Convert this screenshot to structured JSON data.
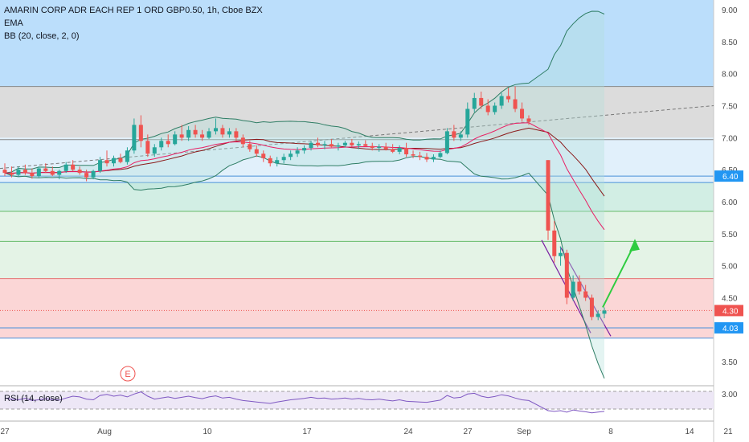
{
  "legend": {
    "title": "AMARIN CORP ADR EACH REP 1 ORD GBP0.50, 1h, Cboe BZX",
    "indicator_1": "EMA",
    "indicator_2": "BB (20, close, 2, 0)"
  },
  "rsi_label": "RSI (14, close)",
  "event_marker": "E",
  "colors": {
    "up": "#26a69a",
    "down": "#ef5350",
    "ema": "#e91e63",
    "bb": "#2e7d64",
    "mid": "#8b1a1a",
    "channel": "#7b1fa2",
    "arrow": "#2ecc40",
    "hline": "#4a90d9"
  },
  "chart_data": {
    "type": "candlestick",
    "y_axis": {
      "min": 3.0,
      "max": 9.0,
      "ticks": [
        "9.00",
        "8.50",
        "8.00",
        "7.50",
        "7.00",
        "6.50",
        "6.00",
        "5.50",
        "5.00",
        "4.50",
        "4.00",
        "3.50",
        "3.00"
      ]
    },
    "x_axis": {
      "ticks": [
        "27",
        "Aug",
        "10",
        "17",
        "24",
        "27",
        "Sep",
        "8",
        "14",
        "21"
      ]
    },
    "price_badges": [
      {
        "label": "6.40",
        "value": 6.4,
        "color": "#2196f3"
      },
      {
        "label": "4.30",
        "value": 4.3,
        "color": "#ef5350"
      },
      {
        "label": "4.03",
        "value": 4.03,
        "color": "#2196f3"
      }
    ],
    "zones": [
      {
        "from": 7.8,
        "to": 9.0,
        "color": "#bbdefb"
      },
      {
        "from": 7.0,
        "to": 7.8,
        "color": "#dcdcdc"
      },
      {
        "from": 6.3,
        "to": 7.0,
        "color": "#e1f0fb"
      },
      {
        "from": 5.85,
        "to": 6.3,
        "color": "#d2eee4"
      },
      {
        "from": 4.8,
        "to": 5.85,
        "color": "#e4f3e6"
      },
      {
        "from": 3.87,
        "to": 4.8,
        "color": "#fbd6d6"
      }
    ],
    "horizontal_lines": [
      7.8,
      6.97,
      6.4,
      6.3,
      5.85,
      5.38,
      4.8,
      4.03,
      3.87
    ],
    "candles": [
      {
        "o": 6.5,
        "h": 6.6,
        "l": 6.4,
        "c": 6.45
      },
      {
        "o": 6.45,
        "h": 6.55,
        "l": 6.38,
        "c": 6.42
      },
      {
        "o": 6.42,
        "h": 6.55,
        "l": 6.4,
        "c": 6.5
      },
      {
        "o": 6.5,
        "h": 6.58,
        "l": 6.42,
        "c": 6.45
      },
      {
        "o": 6.45,
        "h": 6.52,
        "l": 6.36,
        "c": 6.4
      },
      {
        "o": 6.4,
        "h": 6.55,
        "l": 6.38,
        "c": 6.52
      },
      {
        "o": 6.52,
        "h": 6.6,
        "l": 6.45,
        "c": 6.48
      },
      {
        "o": 6.48,
        "h": 6.55,
        "l": 6.4,
        "c": 6.42
      },
      {
        "o": 6.42,
        "h": 6.5,
        "l": 6.35,
        "c": 6.48
      },
      {
        "o": 6.48,
        "h": 6.62,
        "l": 6.45,
        "c": 6.58
      },
      {
        "o": 6.58,
        "h": 6.65,
        "l": 6.48,
        "c": 6.5
      },
      {
        "o": 6.5,
        "h": 6.55,
        "l": 6.42,
        "c": 6.45
      },
      {
        "o": 6.45,
        "h": 6.5,
        "l": 6.32,
        "c": 6.38
      },
      {
        "o": 6.38,
        "h": 6.5,
        "l": 6.35,
        "c": 6.48
      },
      {
        "o": 6.48,
        "h": 6.7,
        "l": 6.45,
        "c": 6.65
      },
      {
        "o": 6.65,
        "h": 6.8,
        "l": 6.55,
        "c": 6.6
      },
      {
        "o": 6.6,
        "h": 6.72,
        "l": 6.55,
        "c": 6.68
      },
      {
        "o": 6.68,
        "h": 6.75,
        "l": 6.6,
        "c": 6.62
      },
      {
        "o": 6.62,
        "h": 6.85,
        "l": 6.58,
        "c": 6.8
      },
      {
        "o": 6.8,
        "h": 7.3,
        "l": 6.75,
        "c": 7.2
      },
      {
        "o": 7.2,
        "h": 7.35,
        "l": 6.85,
        "c": 6.95
      },
      {
        "o": 6.95,
        "h": 7.05,
        "l": 6.7,
        "c": 6.75
      },
      {
        "o": 6.75,
        "h": 6.9,
        "l": 6.7,
        "c": 6.85
      },
      {
        "o": 6.85,
        "h": 7.0,
        "l": 6.8,
        "c": 6.95
      },
      {
        "o": 6.95,
        "h": 7.05,
        "l": 6.85,
        "c": 6.9
      },
      {
        "o": 6.9,
        "h": 7.1,
        "l": 6.88,
        "c": 7.05
      },
      {
        "o": 7.05,
        "h": 7.2,
        "l": 6.95,
        "c": 7.0
      },
      {
        "o": 7.0,
        "h": 7.18,
        "l": 6.95,
        "c": 7.12
      },
      {
        "o": 7.12,
        "h": 7.2,
        "l": 7.0,
        "c": 7.05
      },
      {
        "o": 7.05,
        "h": 7.12,
        "l": 6.95,
        "c": 7.0
      },
      {
        "o": 7.0,
        "h": 7.15,
        "l": 6.98,
        "c": 7.1
      },
      {
        "o": 7.1,
        "h": 7.3,
        "l": 7.05,
        "c": 7.15
      },
      {
        "o": 7.15,
        "h": 7.2,
        "l": 7.0,
        "c": 7.05
      },
      {
        "o": 7.05,
        "h": 7.15,
        "l": 7.0,
        "c": 7.1
      },
      {
        "o": 7.1,
        "h": 7.15,
        "l": 6.95,
        "c": 7.0
      },
      {
        "o": 7.0,
        "h": 7.05,
        "l": 6.85,
        "c": 6.9
      },
      {
        "o": 6.9,
        "h": 6.95,
        "l": 6.78,
        "c": 6.82
      },
      {
        "o": 6.82,
        "h": 6.88,
        "l": 6.7,
        "c": 6.75
      },
      {
        "o": 6.75,
        "h": 6.8,
        "l": 6.62,
        "c": 6.68
      },
      {
        "o": 6.68,
        "h": 6.72,
        "l": 6.55,
        "c": 6.6
      },
      {
        "o": 6.6,
        "h": 6.7,
        "l": 6.55,
        "c": 6.65
      },
      {
        "o": 6.65,
        "h": 6.75,
        "l": 6.6,
        "c": 6.7
      },
      {
        "o": 6.7,
        "h": 6.8,
        "l": 6.65,
        "c": 6.75
      },
      {
        "o": 6.75,
        "h": 6.85,
        "l": 6.7,
        "c": 6.8
      },
      {
        "o": 6.8,
        "h": 6.88,
        "l": 6.75,
        "c": 6.84
      },
      {
        "o": 6.84,
        "h": 6.95,
        "l": 6.8,
        "c": 6.92
      },
      {
        "o": 6.92,
        "h": 7.0,
        "l": 6.85,
        "c": 6.88
      },
      {
        "o": 6.88,
        "h": 6.95,
        "l": 6.82,
        "c": 6.9
      },
      {
        "o": 6.9,
        "h": 6.98,
        "l": 6.85,
        "c": 6.86
      },
      {
        "o": 6.86,
        "h": 6.92,
        "l": 6.8,
        "c": 6.88
      },
      {
        "o": 6.88,
        "h": 6.95,
        "l": 6.85,
        "c": 6.92
      },
      {
        "o": 6.92,
        "h": 6.98,
        "l": 6.86,
        "c": 6.88
      },
      {
        "o": 6.88,
        "h": 6.94,
        "l": 6.82,
        "c": 6.9
      },
      {
        "o": 6.9,
        "h": 6.96,
        "l": 6.86,
        "c": 6.87
      },
      {
        "o": 6.87,
        "h": 6.92,
        "l": 6.8,
        "c": 6.84
      },
      {
        "o": 6.84,
        "h": 6.9,
        "l": 6.78,
        "c": 6.86
      },
      {
        "o": 6.86,
        "h": 6.92,
        "l": 6.8,
        "c": 6.82
      },
      {
        "o": 6.82,
        "h": 6.9,
        "l": 6.76,
        "c": 6.78
      },
      {
        "o": 6.78,
        "h": 6.88,
        "l": 6.74,
        "c": 6.84
      },
      {
        "o": 6.84,
        "h": 6.92,
        "l": 6.7,
        "c": 6.74
      },
      {
        "o": 6.74,
        "h": 6.8,
        "l": 6.68,
        "c": 6.72
      },
      {
        "o": 6.72,
        "h": 6.78,
        "l": 6.65,
        "c": 6.7
      },
      {
        "o": 6.7,
        "h": 6.76,
        "l": 6.62,
        "c": 6.66
      },
      {
        "o": 6.66,
        "h": 6.74,
        "l": 6.62,
        "c": 6.7
      },
      {
        "o": 6.7,
        "h": 6.8,
        "l": 6.68,
        "c": 6.76
      },
      {
        "o": 6.76,
        "h": 7.15,
        "l": 6.74,
        "c": 7.1
      },
      {
        "o": 7.1,
        "h": 7.2,
        "l": 6.95,
        "c": 7.0
      },
      {
        "o": 7.0,
        "h": 7.1,
        "l": 6.95,
        "c": 7.05
      },
      {
        "o": 7.05,
        "h": 7.55,
        "l": 7.0,
        "c": 7.45
      },
      {
        "o": 7.45,
        "h": 7.7,
        "l": 7.4,
        "c": 7.62
      },
      {
        "o": 7.62,
        "h": 7.72,
        "l": 7.45,
        "c": 7.5
      },
      {
        "o": 7.5,
        "h": 7.6,
        "l": 7.35,
        "c": 7.4
      },
      {
        "o": 7.4,
        "h": 7.55,
        "l": 7.36,
        "c": 7.5
      },
      {
        "o": 7.5,
        "h": 7.7,
        "l": 7.45,
        "c": 7.65
      },
      {
        "o": 7.65,
        "h": 7.78,
        "l": 7.55,
        "c": 7.6
      },
      {
        "o": 7.6,
        "h": 7.8,
        "l": 7.4,
        "c": 7.45
      },
      {
        "o": 7.45,
        "h": 7.55,
        "l": 7.25,
        "c": 7.3
      },
      {
        "o": 7.3,
        "h": 7.35,
        "l": 7.2,
        "c": 7.25
      },
      {
        "o": 6.65,
        "h": 6.65,
        "l": 5.4,
        "c": 5.55
      },
      {
        "o": 5.55,
        "h": 5.7,
        "l": 5.05,
        "c": 5.15
      },
      {
        "o": 5.15,
        "h": 5.3,
        "l": 5.0,
        "c": 5.2
      },
      {
        "o": 5.2,
        "h": 5.25,
        "l": 4.4,
        "c": 4.5
      },
      {
        "o": 4.5,
        "h": 4.85,
        "l": 4.45,
        "c": 4.75
      },
      {
        "o": 4.75,
        "h": 4.85,
        "l": 4.55,
        "c": 4.6
      },
      {
        "o": 4.6,
        "h": 4.7,
        "l": 4.45,
        "c": 4.5
      },
      {
        "o": 4.5,
        "h": 4.55,
        "l": 4.15,
        "c": 4.2
      },
      {
        "o": 4.2,
        "h": 4.3,
        "l": 4.15,
        "c": 4.25
      },
      {
        "o": 4.25,
        "h": 4.35,
        "l": 4.18,
        "c": 4.3
      }
    ],
    "rsi": [
      55,
      52,
      50,
      54,
      48,
      50,
      53,
      51,
      49,
      55,
      60,
      58,
      52,
      50,
      62,
      65,
      60,
      63,
      58,
      66,
      72,
      60,
      52,
      55,
      58,
      54,
      57,
      60,
      56,
      53,
      58,
      61,
      55,
      57,
      52,
      48,
      46,
      44,
      42,
      40,
      44,
      47,
      50,
      52,
      54,
      57,
      54,
      55,
      52,
      53,
      55,
      52,
      54,
      51,
      50,
      52,
      49,
      47,
      50,
      46,
      45,
      44,
      43,
      46,
      49,
      62,
      55,
      57,
      66,
      68,
      60,
      56,
      59,
      64,
      61,
      55,
      50,
      48,
      20,
      18,
      20,
      16,
      22,
      19,
      17,
      14,
      16,
      18
    ]
  }
}
